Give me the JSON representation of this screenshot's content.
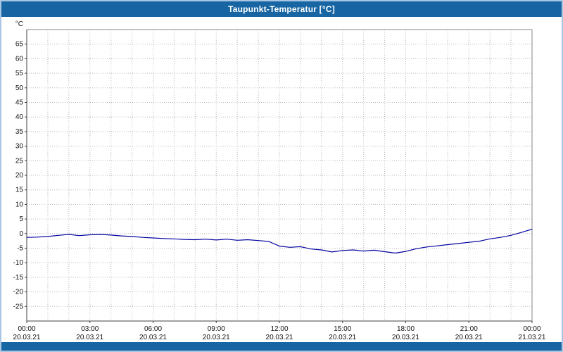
{
  "window": {
    "title": "Taupunkt-Temperatur [°C]"
  },
  "colors": {
    "titlebar": "#1766a3",
    "footer": "#1766a3",
    "frame": "#a9c7e5",
    "grid": "#b8b8b8",
    "axis": "#404040",
    "plot_border": "#888888",
    "line": "#0000a0"
  },
  "chart_data": {
    "type": "line",
    "title": "Taupunkt-Temperatur [°C]",
    "series_name": "Taupunkt-Temperatur",
    "xlabel": "",
    "ylabel": "°C",
    "grid": true,
    "legend": false,
    "xlim": [
      0,
      24
    ],
    "ylim": [
      -30,
      70
    ],
    "yticks": [
      65,
      60,
      55,
      50,
      45,
      40,
      35,
      30,
      25,
      20,
      15,
      10,
      5,
      0,
      -5,
      -10,
      -15,
      -20,
      -25
    ],
    "xticks": [
      {
        "hour": 0,
        "time": "00:00",
        "date": "20.03.21"
      },
      {
        "hour": 3,
        "time": "03:00",
        "date": "20.03.21"
      },
      {
        "hour": 6,
        "time": "06:00",
        "date": "20.03.21"
      },
      {
        "hour": 9,
        "time": "09:00",
        "date": "20.03.21"
      },
      {
        "hour": 12,
        "time": "12:00",
        "date": "20.03.21"
      },
      {
        "hour": 15,
        "time": "15:00",
        "date": "20.03.21"
      },
      {
        "hour": 18,
        "time": "18:00",
        "date": "20.03.21"
      },
      {
        "hour": 21,
        "time": "21:00",
        "date": "20.03.21"
      },
      {
        "hour": 24,
        "time": "00:00",
        "date": "21.03.21"
      }
    ],
    "x": [
      0,
      0.5,
      1,
      1.5,
      2,
      2.5,
      3,
      3.5,
      4,
      4.5,
      5,
      5.5,
      6,
      6.5,
      7,
      7.5,
      8,
      8.5,
      9,
      9.5,
      10,
      10.5,
      11,
      11.5,
      12,
      12.5,
      13,
      13.5,
      14,
      14.5,
      15,
      15.5,
      16,
      16.5,
      17,
      17.5,
      18,
      18.5,
      19,
      19.5,
      20,
      20.5,
      21,
      21.5,
      22,
      22.5,
      23,
      23.5,
      24
    ],
    "y": [
      -1.3,
      -1.2,
      -1.0,
      -0.6,
      -0.3,
      -0.7,
      -0.4,
      -0.3,
      -0.5,
      -0.8,
      -1.0,
      -1.3,
      -1.5,
      -1.7,
      -1.8,
      -2.0,
      -2.1,
      -1.9,
      -2.2,
      -1.9,
      -2.3,
      -2.1,
      -2.4,
      -2.7,
      -4.3,
      -4.7,
      -4.5,
      -5.3,
      -5.6,
      -6.3,
      -5.8,
      -5.6,
      -6.0,
      -5.7,
      -6.2,
      -6.7,
      -6.1,
      -5.2,
      -4.6,
      -4.2,
      -3.8,
      -3.4,
      -3.0,
      -2.6,
      -1.8,
      -1.3,
      -0.6,
      0.4,
      1.5
    ]
  }
}
